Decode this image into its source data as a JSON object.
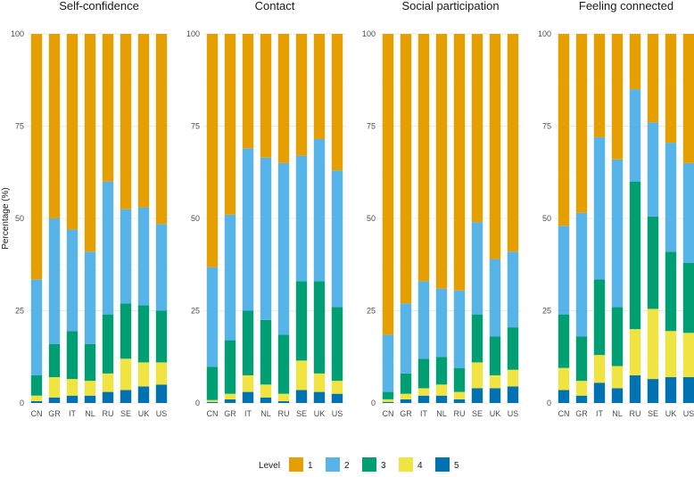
{
  "chart_data": {
    "type": "bar",
    "stacked": true,
    "ylabel": "Percentage (%)",
    "ylim": [
      0,
      100
    ],
    "yticks": [
      0,
      25,
      50,
      75,
      100
    ],
    "categories": [
      "CN",
      "GR",
      "IT",
      "NL",
      "RU",
      "SE",
      "UK",
      "US"
    ],
    "legend": {
      "title": "Level",
      "position": "bottom",
      "entries": [
        {
          "label": "1",
          "color": "#E69F00"
        },
        {
          "label": "2",
          "color": "#56B4E9"
        },
        {
          "label": "3",
          "color": "#009E73"
        },
        {
          "label": "4",
          "color": "#F0E442"
        },
        {
          "label": "5",
          "color": "#0072B2"
        }
      ]
    },
    "panels": [
      {
        "title": "Self-confidence",
        "series": [
          {
            "name": "5",
            "values": [
              0.5,
              1.5,
              2,
              2,
              3,
              3.5,
              4.5,
              5
            ]
          },
          {
            "name": "4",
            "values": [
              1.5,
              5.5,
              4.5,
              4,
              5,
              8.5,
              6.5,
              6
            ]
          },
          {
            "name": "3",
            "values": [
              5.5,
              9,
              13,
              10,
              16,
              15,
              15.5,
              14
            ]
          },
          {
            "name": "2",
            "values": [
              26,
              34,
              27.5,
              25,
              36,
              25.5,
              26.5,
              23.5
            ]
          },
          {
            "name": "1",
            "values": [
              66.5,
              50,
              53,
              59,
              40,
              47.5,
              47,
              51.5
            ]
          }
        ]
      },
      {
        "title": "Contact",
        "series": [
          {
            "name": "5",
            "values": [
              0.3,
              1,
              3,
              1.5,
              0.5,
              3.5,
              3,
              2.5
            ]
          },
          {
            "name": "4",
            "values": [
              0.5,
              1.5,
              4.5,
              3.5,
              2,
              8,
              5,
              3.5
            ]
          },
          {
            "name": "3",
            "values": [
              9,
              14.5,
              17.5,
              17.5,
              16,
              21.5,
              25,
              20
            ]
          },
          {
            "name": "2",
            "values": [
              27,
              34,
              44,
              44,
              46.5,
              34,
              38.5,
              37
            ]
          },
          {
            "name": "1",
            "values": [
              63.2,
              49,
              31,
              33.5,
              35,
              33,
              28.5,
              37
            ]
          }
        ]
      },
      {
        "title": "Social participation",
        "series": [
          {
            "name": "5",
            "values": [
              0.3,
              1,
              2,
              2,
              1,
              4,
              4,
              4.5
            ]
          },
          {
            "name": "4",
            "values": [
              0.7,
              1.5,
              2,
              3,
              2,
              7,
              3.5,
              4.5
            ]
          },
          {
            "name": "3",
            "values": [
              2,
              5.5,
              8,
              7.5,
              6.5,
              13,
              10.5,
              11.5
            ]
          },
          {
            "name": "2",
            "values": [
              15.5,
              19,
              21,
              18.5,
              21,
              25,
              21,
              20.5
            ]
          },
          {
            "name": "1",
            "values": [
              81.5,
              73,
              67,
              69,
              69.5,
              51,
              61,
              59
            ]
          }
        ]
      },
      {
        "title": "Feeling connected",
        "series": [
          {
            "name": "5",
            "values": [
              3.5,
              2,
              5.5,
              4,
              7.5,
              6.5,
              7,
              7
            ]
          },
          {
            "name": "4",
            "values": [
              6,
              4,
              7.5,
              6,
              12.5,
              19,
              12.5,
              12
            ]
          },
          {
            "name": "3",
            "values": [
              14.5,
              12,
              20.5,
              16,
              40,
              25,
              21.5,
              19
            ]
          },
          {
            "name": "2",
            "values": [
              24,
              33.5,
              38.5,
              40,
              25,
              25.5,
              29.5,
              27
            ]
          },
          {
            "name": "1",
            "values": [
              52,
              48.5,
              28,
              34,
              15,
              24,
              29.5,
              35
            ]
          }
        ]
      }
    ]
  }
}
